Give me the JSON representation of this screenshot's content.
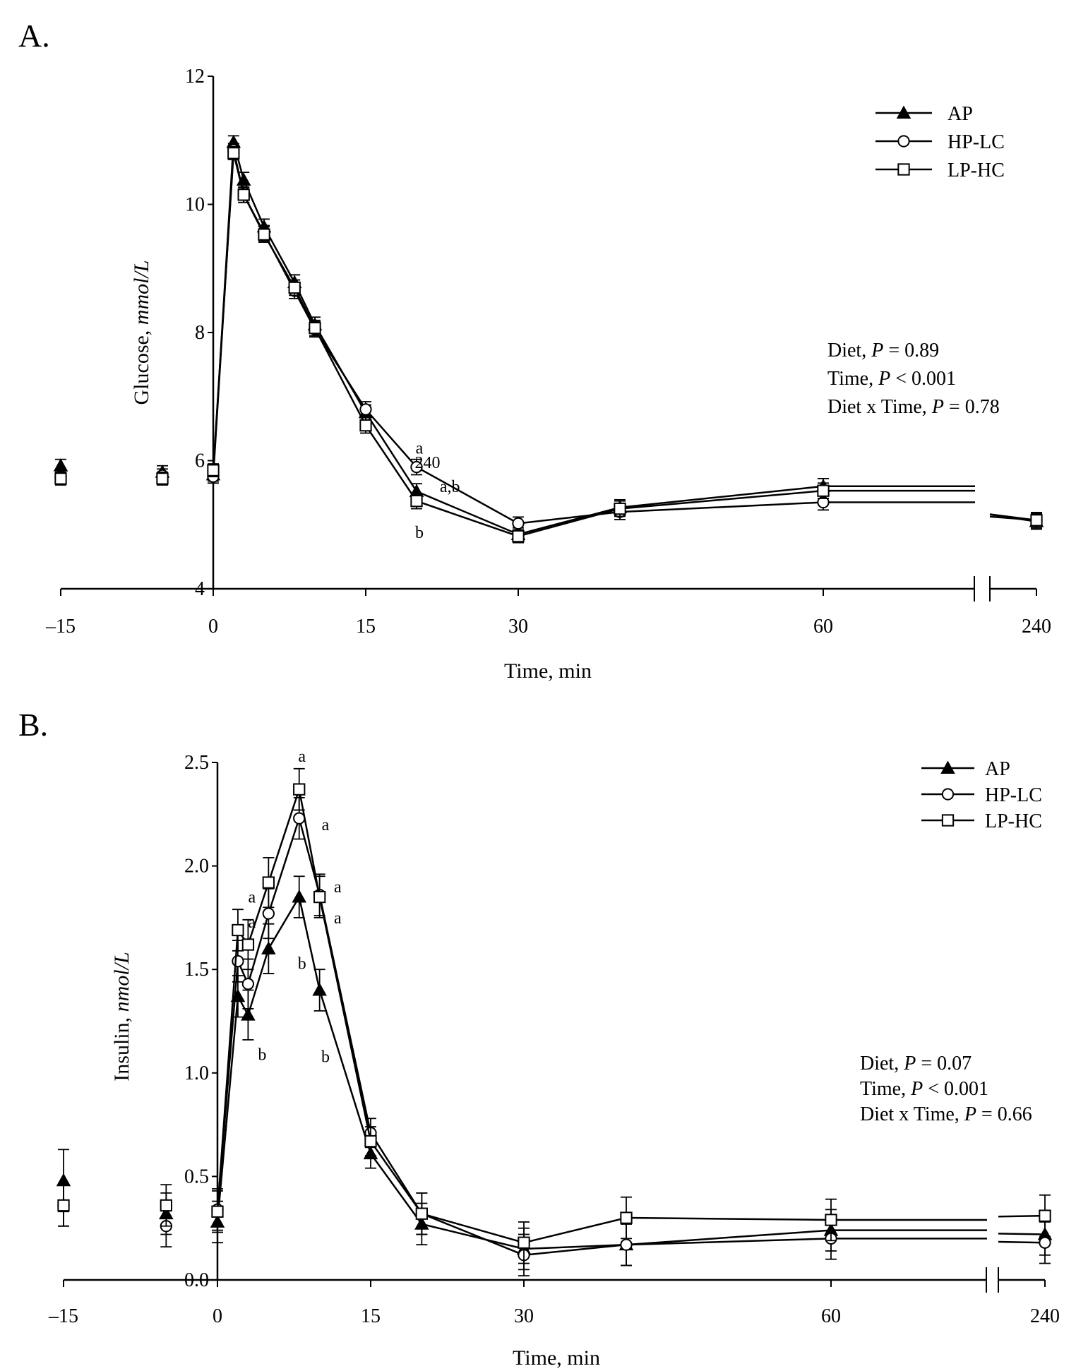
{
  "chart_data": [
    {
      "type": "line",
      "panel_label": "A.",
      "xlabel": "Time, min",
      "ylabel_main": "Glucose, ",
      "ylabel_unit": "mmol/L",
      "ylim": [
        4,
        12
      ],
      "yticks": [
        4,
        6,
        8,
        10,
        12
      ],
      "xticks": [
        -15,
        0,
        15,
        30,
        60,
        240
      ],
      "x": [
        -15,
        -5,
        0,
        2,
        3,
        5,
        8,
        10,
        15,
        20,
        30,
        40,
        60,
        240
      ],
      "series": [
        {
          "name": "AP",
          "marker": "triangle-filled",
          "values": [
            5.92,
            5.82,
            5.78,
            10.97,
            10.38,
            9.65,
            8.78,
            8.12,
            6.75,
            5.52,
            4.85,
            5.27,
            5.6,
            5.05
          ],
          "errors": [
            0.1,
            0.1,
            0.1,
            0.1,
            0.12,
            0.12,
            0.12,
            0.12,
            0.12,
            0.12,
            0.1,
            0.12,
            0.12,
            0.12
          ]
        },
        {
          "name": "HP-LC",
          "marker": "circle-open",
          "values": [
            5.75,
            5.77,
            5.75,
            10.85,
            10.15,
            9.55,
            8.65,
            8.05,
            6.8,
            5.9,
            5.02,
            5.2,
            5.35,
            5.07
          ],
          "errors": [
            0.1,
            0.1,
            0.1,
            0.1,
            0.12,
            0.12,
            0.12,
            0.12,
            0.12,
            0.12,
            0.1,
            0.12,
            0.12,
            0.12
          ]
        },
        {
          "name": "LP-HC",
          "marker": "square-open",
          "values": [
            5.72,
            5.72,
            5.85,
            10.8,
            10.15,
            9.53,
            8.7,
            8.07,
            6.55,
            5.37,
            4.82,
            5.25,
            5.53,
            5.07
          ],
          "errors": [
            0.1,
            0.1,
            0.1,
            0.1,
            0.12,
            0.12,
            0.12,
            0.12,
            0.12,
            0.12,
            0.1,
            0.12,
            0.12,
            0.12
          ]
        }
      ],
      "annotations": [
        {
          "text": "a",
          "x": 20,
          "y": 6.2
        },
        {
          "text": "240",
          "x": 20.8,
          "y": 5.97
        },
        {
          "text": "a,b",
          "x": 23,
          "y": 5.6
        },
        {
          "text": "b",
          "x": 20,
          "y": 4.88
        }
      ],
      "stats": {
        "diet_prefix": "Diet, ",
        "diet_p": "P",
        "diet_value": " = 0.89",
        "time_prefix": "Time, ",
        "time_p": "P",
        "time_value": " < 0.001",
        "interaction_prefix": "Diet x Time, ",
        "interaction_p": "P",
        "interaction_value": " = 0.78"
      },
      "legend": [
        "AP",
        "HP-LC",
        "LP-HC"
      ]
    },
    {
      "type": "line",
      "panel_label": "B.",
      "xlabel": "Time, min",
      "ylabel_main": "Insulin, ",
      "ylabel_unit": "nmol/L",
      "ylim": [
        0,
        2.5
      ],
      "yticks": [
        0.0,
        0.5,
        1.0,
        1.5,
        2.0,
        2.5
      ],
      "ytick_labels": [
        "0.0",
        "0.5",
        "1.0",
        "1.5",
        "2.0",
        "2.5"
      ],
      "xticks": [
        -15,
        0,
        15,
        30,
        60,
        240
      ],
      "x": [
        -15,
        -5,
        0,
        2,
        3,
        5,
        8,
        10,
        15,
        20,
        30,
        40,
        60,
        240
      ],
      "series": [
        {
          "name": "AP",
          "marker": "triangle-filled",
          "values": [
            0.48,
            0.32,
            0.28,
            1.37,
            1.28,
            1.6,
            1.85,
            1.4,
            0.61,
            0.27,
            0.15,
            0.17,
            0.24,
            0.22
          ],
          "errors": [
            0.15,
            0.1,
            0.1,
            0.1,
            0.12,
            0.12,
            0.1,
            0.1,
            0.07,
            0.1,
            0.1,
            0.1,
            0.1,
            0.1
          ]
        },
        {
          "name": "HP-LC",
          "marker": "circle-open",
          "values": [
            0.36,
            0.26,
            0.34,
            1.54,
            1.43,
            1.77,
            2.23,
            1.86,
            0.71,
            0.32,
            0.12,
            0.17,
            0.2,
            0.18
          ],
          "errors": [
            0.1,
            0.1,
            0.1,
            0.1,
            0.12,
            0.12,
            0.1,
            0.1,
            0.07,
            0.1,
            0.1,
            0.1,
            0.1,
            0.1
          ]
        },
        {
          "name": "LP-HC",
          "marker": "square-open",
          "values": [
            0.36,
            0.36,
            0.33,
            1.69,
            1.62,
            1.92,
            2.37,
            1.85,
            0.67,
            0.32,
            0.18,
            0.3,
            0.29,
            0.31
          ],
          "errors": [
            0.1,
            0.1,
            0.1,
            0.1,
            0.12,
            0.12,
            0.1,
            0.1,
            0.07,
            0.1,
            0.1,
            0.1,
            0.1,
            0.1
          ]
        }
      ],
      "annotations": [
        {
          "text": "a",
          "x": 8,
          "y": 2.53
        },
        {
          "text": "a",
          "x": 10.3,
          "y": 2.2
        },
        {
          "text": "a",
          "x": 11.5,
          "y": 1.9
        },
        {
          "text": "a",
          "x": 11.5,
          "y": 1.75
        },
        {
          "text": "a",
          "x": 3.1,
          "y": 1.85
        },
        {
          "text": "a",
          "x": 3.1,
          "y": 1.73
        },
        {
          "text": "b",
          "x": 8,
          "y": 1.53
        },
        {
          "text": "b",
          "x": 10.3,
          "y": 1.08
        },
        {
          "text": "b",
          "x": 4.1,
          "y": 1.09
        }
      ],
      "stats": {
        "diet_prefix": "Diet, ",
        "diet_p": "P",
        "diet_value": " = 0.07",
        "time_prefix": "Time, ",
        "time_p": "P",
        "time_value": " < 0.001",
        "interaction_prefix": "Diet x Time, ",
        "interaction_p": "P",
        "interaction_value": " = 0.66"
      },
      "legend": [
        "AP",
        "HP-LC",
        "LP-HC"
      ]
    }
  ]
}
